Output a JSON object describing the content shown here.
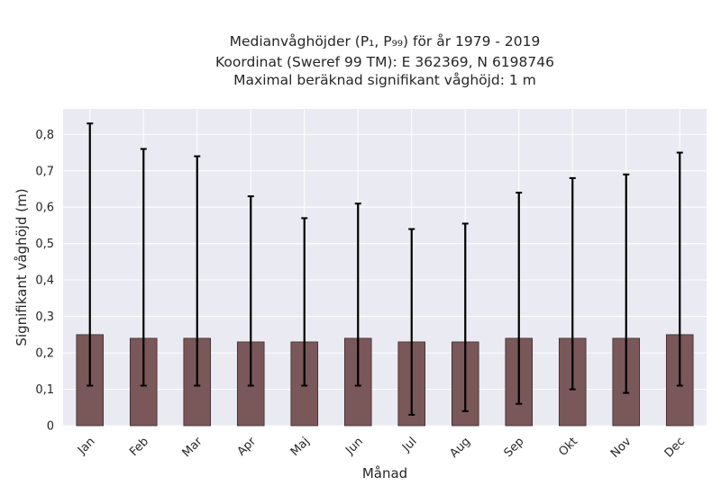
{
  "chart_data": {
    "type": "bar",
    "title": [
      "Medianvåghöjder (P₁, P₉₉) för år 1979 - 2019",
      "Koordinat (Sweref 99 TM): E 362369, N 6198746",
      "Maximal beräknad signifikant våghöjd: 1 m"
    ],
    "xlabel": "Månad",
    "ylabel": "Signifikant våghöjd (m)",
    "categories": [
      "Jan",
      "Feb",
      "Mar",
      "Apr",
      "Maj",
      "Jun",
      "Jul",
      "Aug",
      "Sep",
      "Okt",
      "Nov",
      "Dec"
    ],
    "values": [
      0.25,
      0.24,
      0.24,
      0.23,
      0.23,
      0.24,
      0.23,
      0.23,
      0.24,
      0.24,
      0.24,
      0.25
    ],
    "error_low": [
      0.11,
      0.11,
      0.11,
      0.11,
      0.11,
      0.11,
      0.03,
      0.04,
      0.06,
      0.1,
      0.09,
      0.11
    ],
    "error_high": [
      0.83,
      0.76,
      0.74,
      0.63,
      0.57,
      0.61,
      0.54,
      0.555,
      0.64,
      0.68,
      0.69,
      0.75
    ],
    "ylim": [
      0,
      0.87
    ],
    "yticks": [
      0,
      0.1,
      0.2,
      0.3,
      0.4,
      0.5,
      0.6,
      0.7,
      0.8
    ],
    "ytick_labels": [
      "0",
      "0,1",
      "0,2",
      "0,3",
      "0,4",
      "0,5",
      "0,6",
      "0,7",
      "0,8"
    ],
    "grid": true,
    "colors": {
      "bar": "#7a5758",
      "bar_edge": "#3a2a2a",
      "error": "#000000",
      "plot_bg": "#eaeaf2",
      "grid": "#ffffff"
    }
  }
}
